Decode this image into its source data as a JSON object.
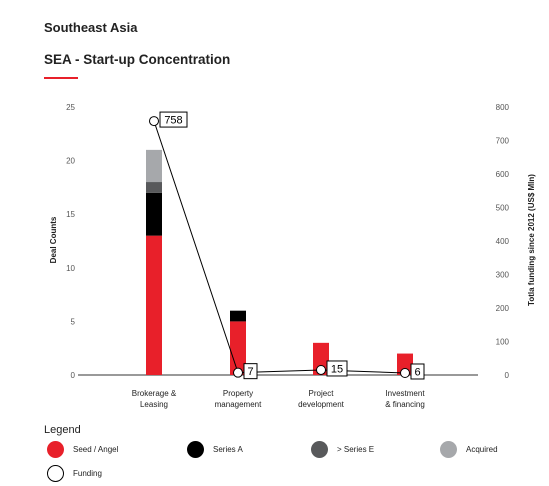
{
  "header": {
    "region": "Southeast Asia",
    "title": "SEA - Start-up Concentration"
  },
  "legend": {
    "title": "Legend",
    "items": [
      {
        "label": "Seed / Angel",
        "color": "#e8202a",
        "kind": "filled"
      },
      {
        "label": "Series A",
        "color": "#000000",
        "kind": "filled"
      },
      {
        "label": "> Series E",
        "color": "#58595b",
        "kind": "filled"
      },
      {
        "label": "Acquired",
        "color": "#a6a8ab",
        "kind": "filled"
      },
      {
        "label": "Funding",
        "color": "#ffffff",
        "kind": "hollow"
      }
    ]
  },
  "chart_data": {
    "type": "bar",
    "stacked": true,
    "categories": [
      [
        "Brokerage &",
        "Leasing"
      ],
      [
        "Property",
        "management"
      ],
      [
        "Project",
        "development"
      ],
      [
        "Investment",
        "& financing"
      ]
    ],
    "series": [
      {
        "name": "Seed / Angel",
        "color": "#e8202a",
        "values": [
          13,
          5,
          3,
          2
        ]
      },
      {
        "name": "Series A",
        "color": "#000000",
        "values": [
          4,
          1,
          0,
          0
        ]
      },
      {
        "name": "> Series E",
        "color": "#58595b",
        "values": [
          1,
          0,
          0,
          0
        ]
      },
      {
        "name": "Acquired",
        "color": "#a6a8ab",
        "values": [
          3,
          0,
          0,
          0
        ]
      }
    ],
    "line_series": {
      "name": "Funding",
      "axis": "right",
      "values": [
        758,
        7,
        15,
        6
      ],
      "labels": [
        "758",
        "7",
        "15",
        "6"
      ]
    },
    "ylabel": "Deal Counts",
    "ylim": [
      0,
      25
    ],
    "yticks": [
      "0",
      "5",
      "10",
      "15",
      "20",
      "25"
    ],
    "y2label": "Totla funding since 2012 (US$ Mln)",
    "y2lim": [
      0,
      800
    ],
    "y2ticks": [
      "0",
      "100",
      "200",
      "300",
      "400",
      "500",
      "600",
      "700",
      "800"
    ],
    "grid": false,
    "legend_position": "bottom"
  }
}
